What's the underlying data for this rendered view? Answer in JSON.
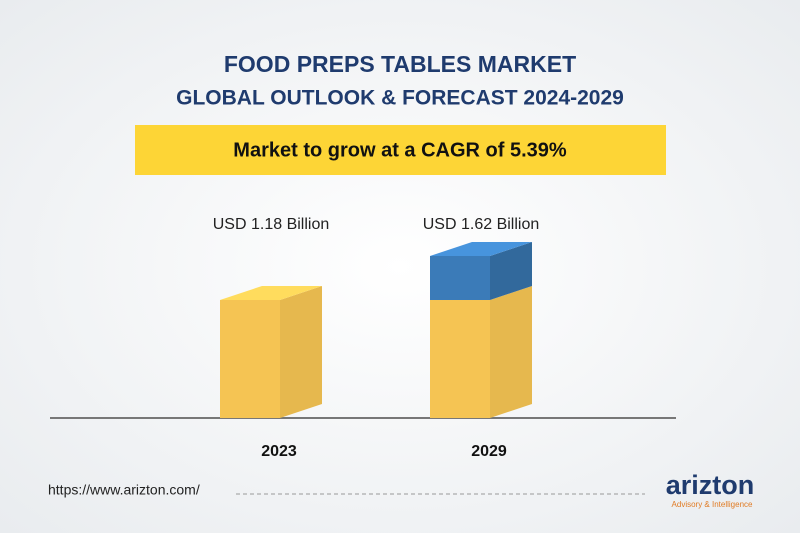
{
  "chart_data": {
    "type": "bar3d",
    "title": "FOOD PREPS TABLES MARKET",
    "subtitle": "GLOBAL OUTLOOK & FORECAST 2024-2029",
    "annotation": "Market to grow at a CAGR of 5.39%",
    "categories": [
      "2023",
      "2029"
    ],
    "values": [
      1.18,
      1.62
    ],
    "value_labels": [
      "USD 1.18 Billion",
      "USD 1.62 Billion"
    ],
    "color": "#f5c453",
    "growth_color": "#3b7bb8"
  },
  "footer": {
    "url": "https://www.arizton.com/",
    "logo": "arizton",
    "tagline": "Advisory & Intelligence"
  }
}
